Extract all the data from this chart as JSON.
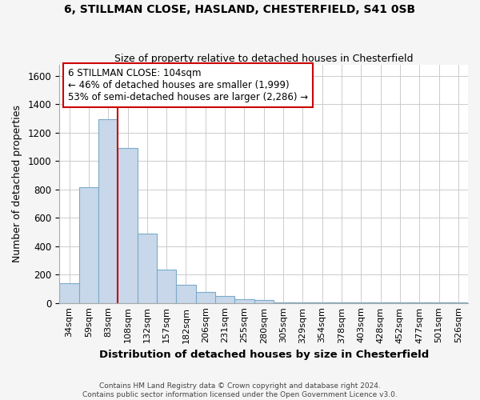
{
  "title1": "6, STILLMAN CLOSE, HASLAND, CHESTERFIELD, S41 0SB",
  "title2": "Size of property relative to detached houses in Chesterfield",
  "xlabel": "Distribution of detached houses by size in Chesterfield",
  "ylabel": "Number of detached properties",
  "categories": [
    "34sqm",
    "59sqm",
    "83sqm",
    "108sqm",
    "132sqm",
    "157sqm",
    "182sqm",
    "206sqm",
    "231sqm",
    "255sqm",
    "280sqm",
    "305sqm",
    "329sqm",
    "354sqm",
    "378sqm",
    "403sqm",
    "428sqm",
    "452sqm",
    "477sqm",
    "501sqm",
    "526sqm"
  ],
  "values": [
    140,
    815,
    1295,
    1090,
    490,
    235,
    130,
    75,
    48,
    25,
    20,
    5,
    5,
    3,
    2,
    2,
    2,
    2,
    2,
    2,
    2
  ],
  "bar_color": "#c8d8ea",
  "bar_edge_color": "#7aaac8",
  "vline_color": "#cc0000",
  "annotation_text": "6 STILLMAN CLOSE: 104sqm\n← 46% of detached houses are smaller (1,999)\n53% of semi-detached houses are larger (2,286) →",
  "annotation_box_color": "#ffffff",
  "annotation_box_edge": "#cc0000",
  "ylim": [
    0,
    1680
  ],
  "yticks": [
    0,
    200,
    400,
    600,
    800,
    1000,
    1200,
    1400,
    1600
  ],
  "footnote1": "Contains HM Land Registry data © Crown copyright and database right 2024.",
  "footnote2": "Contains public sector information licensed under the Open Government Licence v3.0.",
  "bg_color": "#f5f5f5",
  "plot_bg_color": "#ffffff",
  "grid_color": "#cccccc"
}
